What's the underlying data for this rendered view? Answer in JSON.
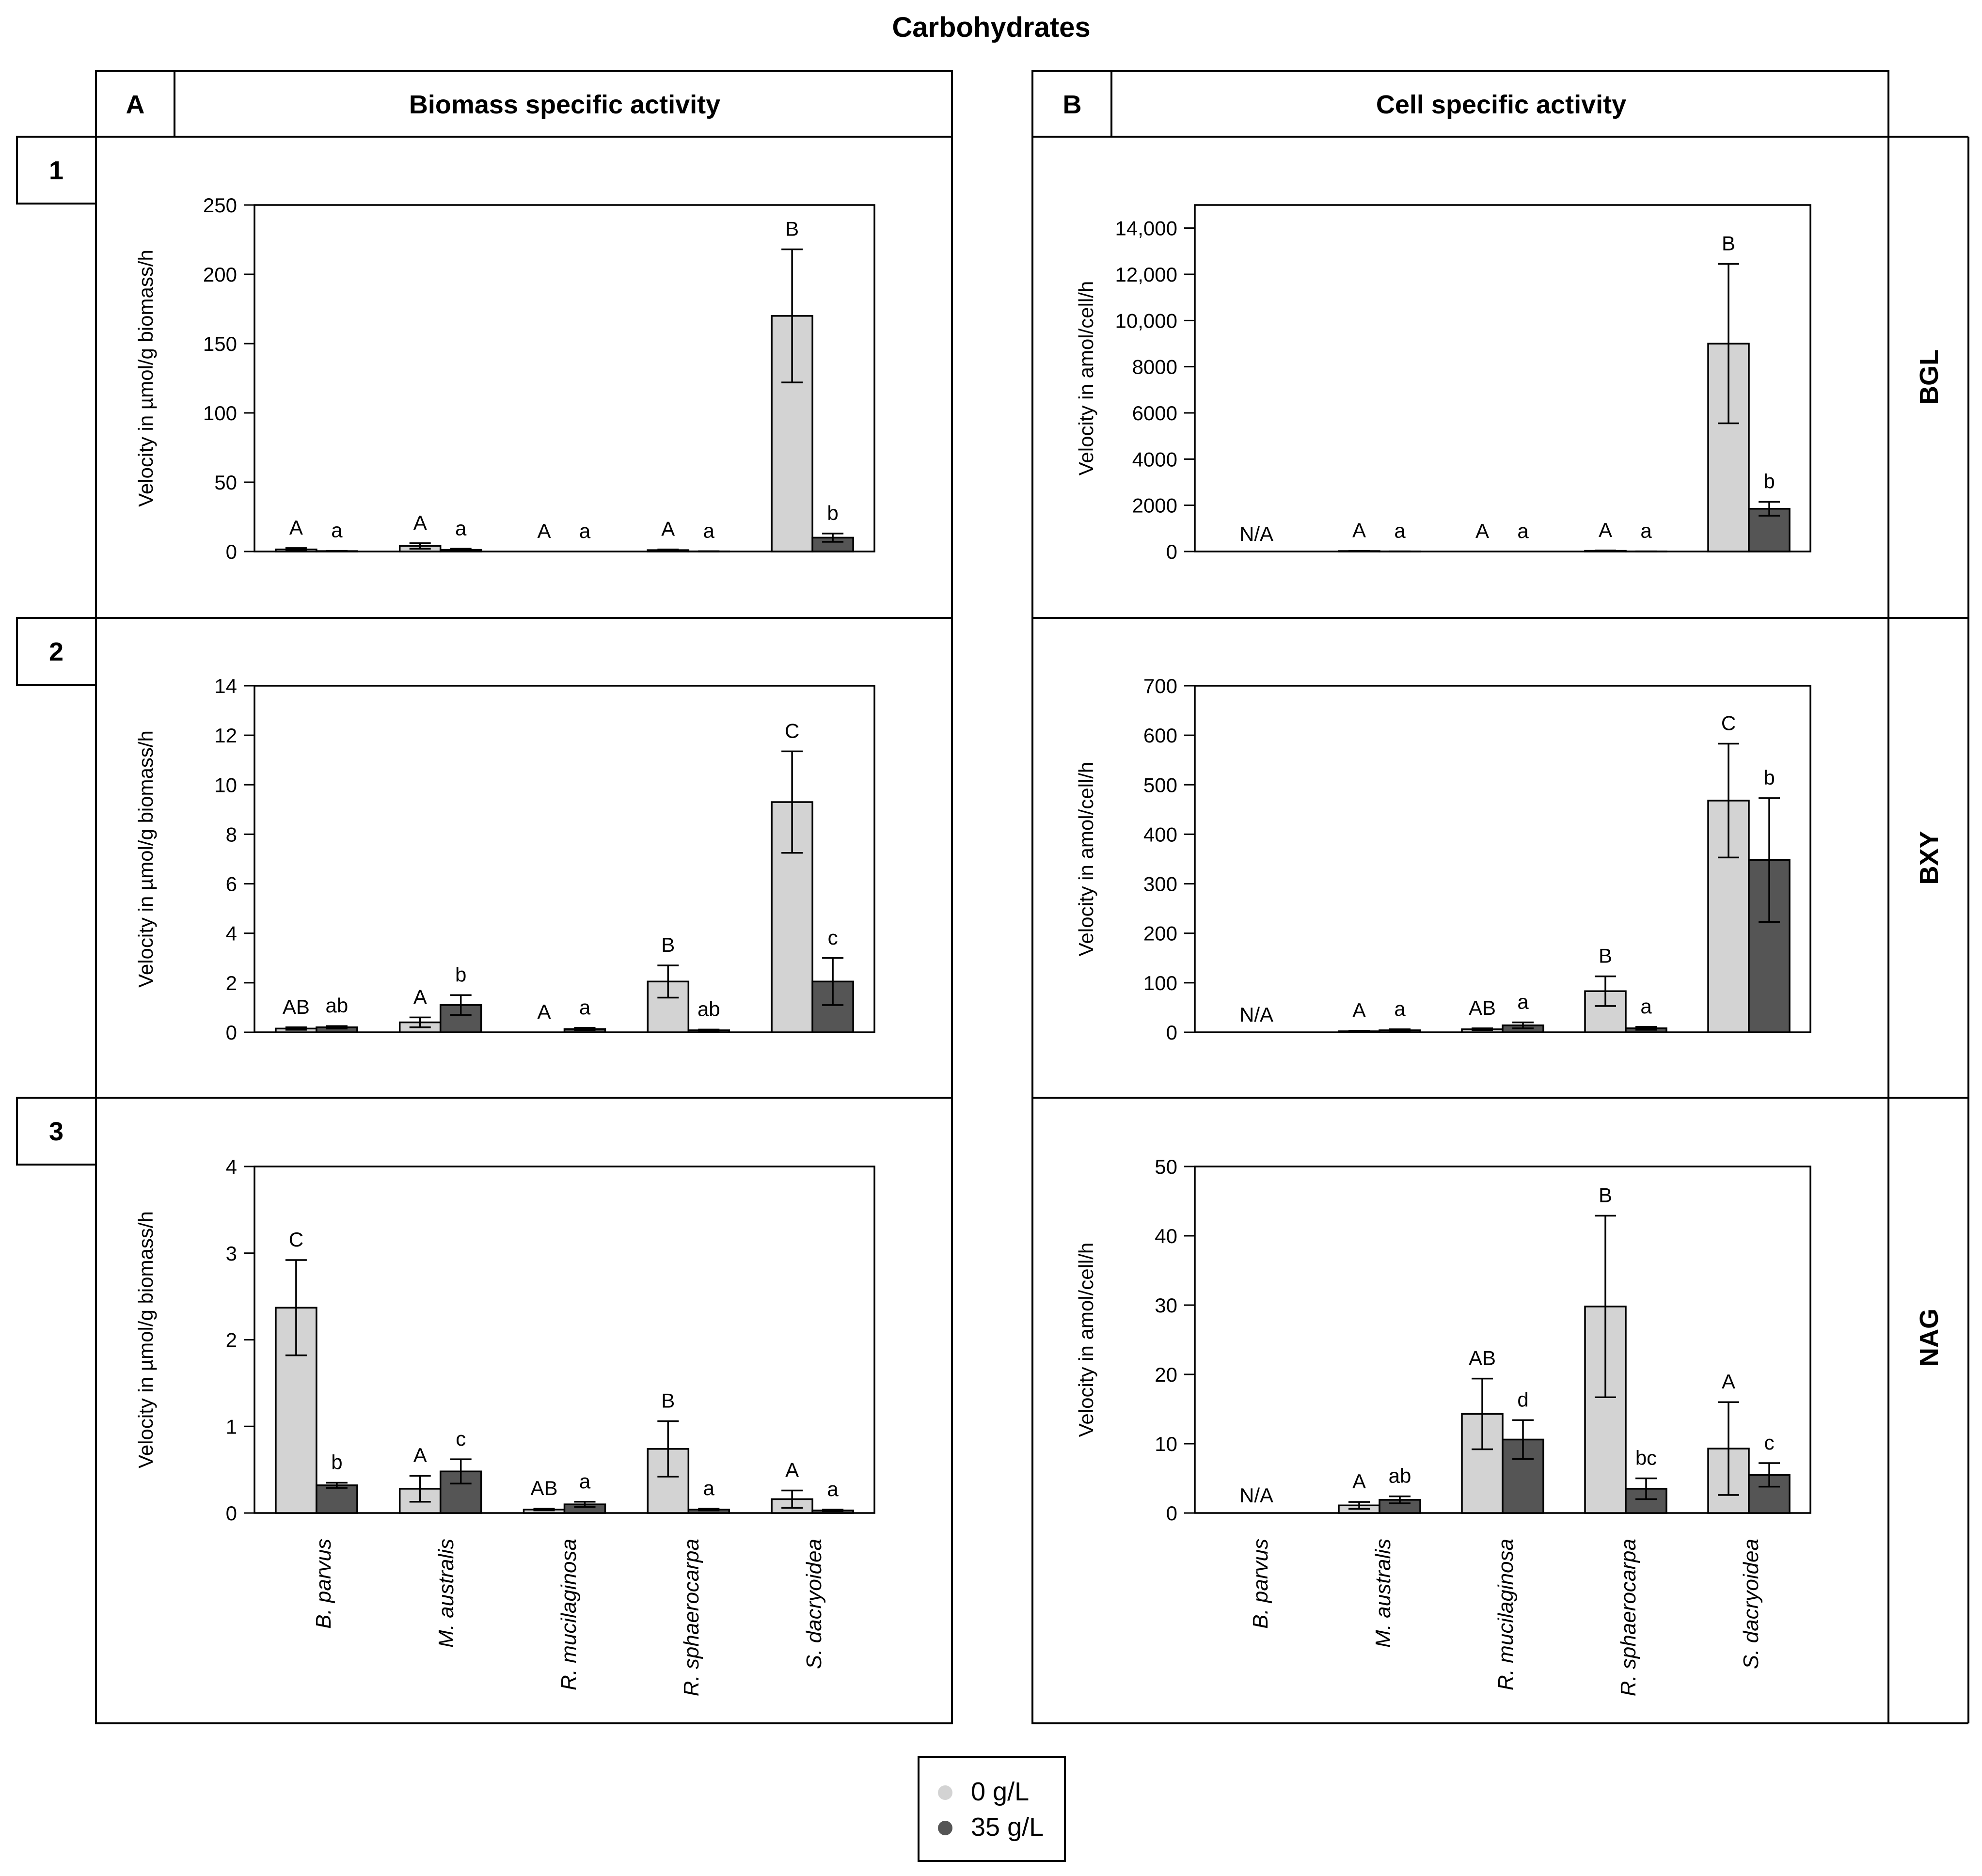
{
  "figure": {
    "title": "Carbohydrates",
    "columns": [
      {
        "letter": "A",
        "title": "Biomass specific activity"
      },
      {
        "letter": "B",
        "title": "Cell specific activity"
      }
    ],
    "rows": [
      {
        "number": "1",
        "enzyme": "BGL"
      },
      {
        "number": "2",
        "enzyme": "BXY"
      },
      {
        "number": "3",
        "enzyme": "NAG"
      }
    ],
    "species": [
      "B. parvus",
      "M. australis",
      "R. mucilaginosa",
      "R. sphaerocarpa",
      "S. dacryoidea"
    ],
    "legend": {
      "items": [
        {
          "label": "0 g/L",
          "color": "#d3d3d3"
        },
        {
          "label": "35 g/L",
          "color": "#555555"
        }
      ]
    },
    "colors": {
      "light_bar": "#d3d3d3",
      "dark_bar": "#555555"
    }
  },
  "chart_data": [
    {
      "id": "A1",
      "type": "bar",
      "enzyme": "BGL",
      "ylabel": "Velocity in µmol/g biomass/h",
      "ylim": [
        0,
        250
      ],
      "ytick_labels": [
        "0",
        "50",
        "100",
        "150",
        "200",
        "250"
      ],
      "categories": [
        "B. parvus",
        "M. australis",
        "R. mucilaginosa",
        "R. sphaerocarpa",
        "S. dacryoidea"
      ],
      "series": [
        {
          "name": "0 g/L",
          "values": [
            1.5,
            4,
            0,
            1,
            170
          ],
          "errors": [
            1,
            2,
            0,
            0.5,
            48
          ],
          "labels": [
            "A",
            "A",
            "A",
            "A",
            "B"
          ],
          "na": [
            false,
            false,
            false,
            false,
            false
          ]
        },
        {
          "name": "35 g/L",
          "values": [
            0.3,
            1.2,
            0,
            0.1,
            10
          ],
          "errors": [
            0.2,
            0.8,
            0,
            0.1,
            3
          ],
          "labels": [
            "a",
            "a",
            "a",
            "a",
            "b"
          ],
          "na": [
            false,
            false,
            false,
            false,
            false
          ]
        }
      ]
    },
    {
      "id": "A2",
      "type": "bar",
      "enzyme": "BXY",
      "ylabel": "Velocity in µmol/g biomass/h",
      "ylim": [
        0,
        14
      ],
      "ytick_labels": [
        "0",
        "2",
        "4",
        "6",
        "8",
        "10",
        "12",
        "14"
      ],
      "categories": [
        "B. parvus",
        "M. australis",
        "R. mucilaginosa",
        "R. sphaerocarpa",
        "S. dacryoidea"
      ],
      "series": [
        {
          "name": "0 g/L",
          "values": [
            0.15,
            0.4,
            0,
            2.05,
            9.3
          ],
          "errors": [
            0.05,
            0.2,
            0,
            0.65,
            2.05
          ],
          "labels": [
            "AB",
            "A",
            "A",
            "B",
            "C"
          ],
          "na": [
            false,
            false,
            false,
            false,
            false
          ]
        },
        {
          "name": "35 g/L",
          "values": [
            0.2,
            1.1,
            0.13,
            0.08,
            2.05
          ],
          "errors": [
            0.05,
            0.4,
            0.05,
            0.03,
            0.95
          ],
          "labels": [
            "ab",
            "b",
            "a",
            "ab",
            "c"
          ],
          "na": [
            false,
            false,
            false,
            false,
            false
          ]
        }
      ]
    },
    {
      "id": "A3",
      "type": "bar",
      "enzyme": "NAG",
      "ylabel": "Velocity in µmol/g biomass/h",
      "ylim": [
        0,
        4
      ],
      "ytick_labels": [
        "0",
        "1",
        "2",
        "3",
        "4"
      ],
      "categories": [
        "B. parvus",
        "M. australis",
        "R. mucilaginosa",
        "R. sphaerocarpa",
        "S. dacryoidea"
      ],
      "series": [
        {
          "name": "0 g/L",
          "values": [
            2.37,
            0.28,
            0.04,
            0.74,
            0.16
          ],
          "errors": [
            0.55,
            0.15,
            0.01,
            0.32,
            0.1
          ],
          "labels": [
            "C",
            "A",
            "AB",
            "B",
            "A"
          ],
          "na": [
            false,
            false,
            false,
            false,
            false
          ]
        },
        {
          "name": "35 g/L",
          "values": [
            0.32,
            0.48,
            0.1,
            0.04,
            0.03
          ],
          "errors": [
            0.03,
            0.14,
            0.03,
            0.01,
            0.01
          ],
          "labels": [
            "b",
            "c",
            "a",
            "a",
            "a"
          ],
          "na": [
            false,
            false,
            false,
            false,
            false
          ]
        }
      ]
    },
    {
      "id": "B1",
      "type": "bar",
      "enzyme": "BGL",
      "ylabel": "Velocity in amol/cell/h",
      "ylim": [
        0,
        15000
      ],
      "ytick_labels": [
        "0",
        "2000",
        "4000",
        "6000",
        "8000",
        "10,000",
        "12,000",
        "14,000"
      ],
      "ytick_values": [
        0,
        2000,
        4000,
        6000,
        8000,
        10000,
        12000,
        14000
      ],
      "categories": [
        "B. parvus",
        "M. australis",
        "R. mucilaginosa",
        "R. sphaerocarpa",
        "S. dacryoidea"
      ],
      "na_label": "N/A",
      "series": [
        {
          "name": "0 g/L",
          "values": [
            0,
            20,
            0,
            30,
            9000
          ],
          "errors": [
            0,
            10,
            0,
            15,
            3450
          ],
          "labels": [
            "N/A",
            "A",
            "A",
            "A",
            "B"
          ],
          "na": [
            true,
            false,
            false,
            false,
            false
          ]
        },
        {
          "name": "35 g/L",
          "values": [
            0,
            5,
            0,
            5,
            1850
          ],
          "errors": [
            0,
            3,
            0,
            3,
            300
          ],
          "labels": [
            "",
            "a",
            "a",
            "a",
            "b"
          ],
          "na": [
            true,
            false,
            false,
            false,
            false
          ]
        }
      ]
    },
    {
      "id": "B2",
      "type": "bar",
      "enzyme": "BXY",
      "ylabel": "Velocity in amol/cell/h",
      "ylim": [
        0,
        700
      ],
      "ytick_labels": [
        "0",
        "100",
        "200",
        "300",
        "400",
        "500",
        "600",
        "700"
      ],
      "categories": [
        "B. parvus",
        "M. australis",
        "R. mucilaginosa",
        "R. sphaerocarpa",
        "S. dacryoidea"
      ],
      "na_label": "N/A",
      "series": [
        {
          "name": "0 g/L",
          "values": [
            0,
            2,
            6,
            83,
            468
          ],
          "errors": [
            0,
            1,
            2,
            30,
            115
          ],
          "labels": [
            "N/A",
            "A",
            "AB",
            "B",
            "C"
          ],
          "na": [
            true,
            false,
            false,
            false,
            false
          ]
        },
        {
          "name": "35 g/L",
          "values": [
            0,
            4,
            14,
            8,
            348
          ],
          "errors": [
            0,
            2,
            6,
            3,
            125
          ],
          "labels": [
            "",
            "a",
            "a",
            "a",
            "b"
          ],
          "na": [
            true,
            false,
            false,
            false,
            false
          ]
        }
      ]
    },
    {
      "id": "B3",
      "type": "bar",
      "enzyme": "NAG",
      "ylabel": "Velocity in amol/cell/h",
      "ylim": [
        0,
        50
      ],
      "ytick_labels": [
        "0",
        "10",
        "20",
        "30",
        "40",
        "50"
      ],
      "categories": [
        "B. parvus",
        "M. australis",
        "R. mucilaginosa",
        "R. sphaerocarpa",
        "S. dacryoidea"
      ],
      "na_label": "N/A",
      "series": [
        {
          "name": "0 g/L",
          "values": [
            0,
            1.1,
            14.3,
            29.8,
            9.3
          ],
          "errors": [
            0,
            0.5,
            5.1,
            13.1,
            6.7
          ],
          "labels": [
            "N/A",
            "A",
            "AB",
            "B",
            "A"
          ],
          "na": [
            true,
            false,
            false,
            false,
            false
          ]
        },
        {
          "name": "35 g/L",
          "values": [
            0,
            1.9,
            10.6,
            3.5,
            5.5
          ],
          "errors": [
            0,
            0.5,
            2.8,
            1.5,
            1.7
          ],
          "labels": [
            "",
            "ab",
            "d",
            "bc",
            "c"
          ],
          "na": [
            true,
            false,
            false,
            false,
            false
          ]
        }
      ]
    }
  ]
}
